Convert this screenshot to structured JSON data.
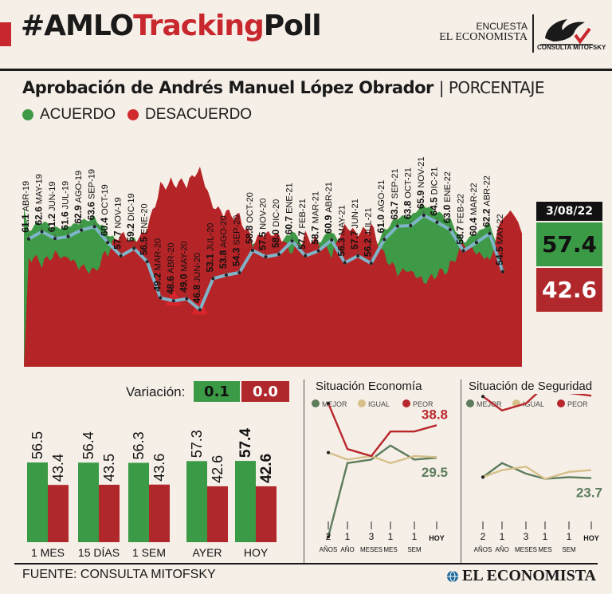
{
  "header": {
    "hashtag_pre": "#AMLO",
    "hashtag_red": "Tracking",
    "hashtag_post": "Poll",
    "brand_line1": "ENCUESTA",
    "brand_line2": "EL ECONOMISTA",
    "logo_text": "CONSULTA MITOFSKY"
  },
  "title": {
    "main": "Aprobación de Andrés Manuel López Obrador",
    "unit": "PORCENTAJE"
  },
  "legend": {
    "acuerdo": "ACUERDO",
    "desacuerdo": "DESACUERDO"
  },
  "colors": {
    "green": "#3e9a46",
    "red": "#b52426",
    "line": "#7fb4c9",
    "bg": "#f6efe8",
    "box_green": "#3a9a45",
    "box_red": "#b0282b",
    "sage": "#5c7c5c",
    "tan": "#d6c08a",
    "crimson": "#b8272c"
  },
  "main_chart": {
    "date_label": "3/08/22",
    "current_acuerdo": "57.4",
    "current_desacuerdo": "42.6",
    "chart_data": {
      "type": "area",
      "series": [
        {
          "name": "ACUERDO",
          "values": [
            61.1,
            62.6,
            61.2,
            61.6,
            62.9,
            63.6,
            60.4,
            57.7,
            59.2,
            56.5,
            49.2,
            48.6,
            49.0,
            46.8,
            53.1,
            53.8,
            54.3,
            58.8,
            57.5,
            58.0,
            60.7,
            57.7,
            58.7,
            60.9,
            56.3,
            57.7,
            56.2,
            61.0,
            63.7,
            63.8,
            65.9,
            64.5,
            63.0,
            58.7,
            60.4,
            62.2,
            54.5
          ]
        },
        {
          "name": "DESACUERDO",
          "values": [
            38.9,
            37.4,
            38.8,
            38.4,
            37.1,
            36.4,
            39.6,
            42.3,
            40.8,
            43.5,
            50.8,
            51.4,
            51.0,
            53.2,
            46.9,
            46.2,
            45.7,
            41.2,
            42.5,
            42.0,
            39.3,
            42.3,
            41.3,
            39.1,
            43.7,
            42.3,
            43.8,
            39.0,
            36.3,
            36.2,
            34.1,
            35.5,
            37.0,
            41.3,
            39.6,
            37.8,
            45.5
          ]
        }
      ],
      "point_labels": [
        {
          "value": "61.1",
          "date": "ABR-19"
        },
        {
          "value": "62.6",
          "date": "MAY-19"
        },
        {
          "value": "61.2",
          "date": "JUN-19"
        },
        {
          "value": "61.6",
          "date": "JUL-19"
        },
        {
          "value": "62.9",
          "date": "AGO-19"
        },
        {
          "value": "63.6",
          "date": "SEP-19"
        },
        {
          "value": "60.4",
          "date": "OCT-19"
        },
        {
          "value": "57.7",
          "date": "NOV-19"
        },
        {
          "value": "59.2",
          "date": "DIC-19"
        },
        {
          "value": "56.5",
          "date": "ENE-20"
        },
        {
          "value": "49.2",
          "date": "MAR-20"
        },
        {
          "value": "48.6",
          "date": "ABR-20"
        },
        {
          "value": "49.0",
          "date": "MAY-20"
        },
        {
          "value": "46.8",
          "date": "JUN-20"
        },
        {
          "value": "53.1",
          "date": "JUL-20"
        },
        {
          "value": "53.8",
          "date": "AGO-20"
        },
        {
          "value": "54.3",
          "date": "SEP-20"
        },
        {
          "value": "58.8",
          "date": "OCT-20"
        },
        {
          "value": "57.5",
          "date": "NOV-20"
        },
        {
          "value": "58.0",
          "date": "DIC-20"
        },
        {
          "value": "60.7",
          "date": "ENE-21"
        },
        {
          "value": "57.7",
          "date": "FEB-21"
        },
        {
          "value": "58.7",
          "date": "MAR-21"
        },
        {
          "value": "60.9",
          "date": "ABR-21"
        },
        {
          "value": "56.3",
          "date": "MAY-21"
        },
        {
          "value": "57.7",
          "date": "JUN-21"
        },
        {
          "value": "56.2",
          "date": "JUL-21"
        },
        {
          "value": "61.0",
          "date": "AGO-21"
        },
        {
          "value": "63.7",
          "date": "SEP-21"
        },
        {
          "value": "63.8",
          "date": "OCT-21"
        },
        {
          "value": "65.9",
          "date": "NOV-21"
        },
        {
          "value": "64.5",
          "date": "DIC-21"
        },
        {
          "value": "63.0",
          "date": "ENE-22"
        },
        {
          "value": "58.7",
          "date": "FEB-22"
        },
        {
          "value": "60.4",
          "date": "MAR-22"
        },
        {
          "value": "62.2",
          "date": "ABR-22"
        },
        {
          "value": "54.5",
          "date": "MAY-22"
        }
      ]
    }
  },
  "variation": {
    "label": "Variación:",
    "acuerdo": "0.1",
    "desacuerdo": "0.0"
  },
  "bars": {
    "chart_data": {
      "type": "bar",
      "categories": [
        "1 MES",
        "15 DÍAS",
        "1 SEM",
        "AYER",
        "HOY"
      ],
      "series": [
        {
          "name": "ACUERDO",
          "values": [
            56.5,
            56.4,
            56.3,
            57.3,
            57.4
          ]
        },
        {
          "name": "DESACUERDO",
          "values": [
            43.4,
            43.5,
            43.6,
            42.6,
            42.6
          ]
        }
      ],
      "labels_acuerdo": [
        "56.5",
        "56.4",
        "56.3",
        "57.3",
        "57.4"
      ],
      "labels_desacuerdo": [
        "43.4",
        "43.5",
        "43.6",
        "42.6",
        "42.6"
      ]
    }
  },
  "economia": {
    "title": "Situación Economía",
    "legend": [
      "MEJOR",
      "IGUAL",
      "PEOR"
    ],
    "value_peor": "38.8",
    "value_mejor": "29.5",
    "xticks": [
      [
        "2",
        "AÑOS"
      ],
      [
        "1",
        "AÑO"
      ],
      [
        "3",
        "MESES"
      ],
      [
        "1",
        "MES"
      ],
      [
        "1",
        "SEM"
      ],
      [
        "HOY",
        ""
      ]
    ],
    "chart_data": {
      "type": "line",
      "x": [
        "2 AÑOS",
        "1 AÑO",
        "3 MESES",
        "1 MES",
        "1 SEM",
        "HOY"
      ],
      "series": [
        {
          "name": "MEJOR",
          "values": [
            7,
            28,
            29,
            33,
            29,
            29.5
          ]
        },
        {
          "name": "IGUAL",
          "values": [
            31,
            29,
            30,
            28,
            30,
            29.7
          ]
        },
        {
          "name": "PEOR",
          "values": [
            45,
            32,
            30,
            37,
            37,
            38.8
          ]
        }
      ]
    }
  },
  "seguridad": {
    "title": "Situación de Seguridad",
    "legend": [
      "MEJOR",
      "IGUAL",
      "PEOR"
    ],
    "value_peor": "47.2",
    "value_mejor": "23.7",
    "xticks": [
      [
        "2",
        "AÑOS"
      ],
      [
        "1",
        "AÑO"
      ],
      [
        "3",
        "MESES"
      ],
      [
        "1",
        "MES"
      ],
      [
        "1",
        "SEM"
      ],
      [
        "HOY",
        ""
      ]
    ],
    "chart_data": {
      "type": "line",
      "x": [
        "2 AÑOS",
        "1 AÑO",
        "3 MESES",
        "1 MES",
        "1 SEM",
        "HOY"
      ],
      "series": [
        {
          "name": "MEJOR",
          "values": [
            24,
            28,
            25,
            23.5,
            24,
            23.7
          ]
        },
        {
          "name": "IGUAL",
          "values": [
            24,
            26,
            27,
            23.5,
            25.5,
            26
          ]
        },
        {
          "name": "PEOR",
          "values": [
            47,
            43,
            45,
            50,
            48,
            47.2
          ]
        }
      ]
    }
  },
  "footer": {
    "source": "FUENTE: CONSULTA MITOFSKY",
    "brand": "EL ECONOMISTA"
  }
}
